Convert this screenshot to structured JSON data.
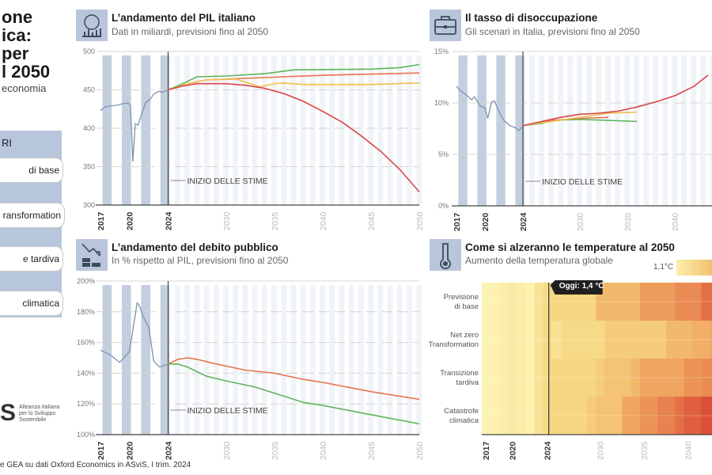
{
  "left_panel": {
    "title_lines": [
      "one",
      "ica:",
      "per",
      "l 2050"
    ],
    "subtitle": "economia",
    "legend_header": "RI",
    "legend_items": [
      "di base",
      "ransformation",
      "e tardiva",
      "climatica"
    ],
    "logo_text": [
      "Alleanza Italiana",
      "per lo Sviluppo",
      "Sostenibile"
    ],
    "source": "e GEA su dati Oxford Economics in ASviS, I trim. 2024"
  },
  "annotation": "INIZIO DELLE STIME",
  "chart_data": [
    {
      "id": "pil",
      "type": "line",
      "title": "L’andamento del PIL italiano",
      "subtitle": "Dati in miliardi, previsioni fino al 2050",
      "icon": "globe-chart-icon",
      "ylim": [
        300,
        500
      ],
      "yticks": [
        "300",
        "350",
        "400",
        "450",
        "500"
      ],
      "ytick_values": [
        300,
        350,
        400,
        450,
        500
      ],
      "xlim": [
        2017,
        2050
      ],
      "xticks": [
        "2017",
        "2020",
        "2024",
        "2030",
        "2035",
        "2040",
        "2045",
        "2050"
      ],
      "forecast_start": 2024,
      "grid": true,
      "series": [
        {
          "color": "#7b93b0",
          "points": [
            [
              2017,
              423
            ],
            [
              2017.5,
              428
            ],
            [
              2018,
              429
            ],
            [
              2018.7,
              430
            ],
            [
              2019.3,
              432
            ],
            [
              2019.8,
              433
            ],
            [
              2020.1,
              430
            ],
            [
              2020.35,
              357
            ],
            [
              2020.6,
              406
            ],
            [
              2020.9,
              404
            ],
            [
              2021.3,
              420
            ],
            [
              2021.7,
              434
            ],
            [
              2022.1,
              437
            ],
            [
              2022.5,
              444
            ],
            [
              2023,
              448
            ],
            [
              2023.4,
              447
            ],
            [
              2024,
              450
            ]
          ]
        },
        {
          "color": "#5fb35a",
          "points": [
            [
              2024,
              450
            ],
            [
              2025.5,
              458
            ],
            [
              2027,
              467
            ],
            [
              2030,
              468
            ],
            [
              2034,
              471
            ],
            [
              2037,
              476
            ],
            [
              2045,
              477
            ],
            [
              2048,
              479
            ],
            [
              2050,
              483
            ]
          ]
        },
        {
          "color": "#e8744c",
          "points": [
            [
              2024,
              450
            ],
            [
              2026,
              458
            ],
            [
              2028,
              463
            ],
            [
              2032,
              465
            ],
            [
              2036,
              467
            ],
            [
              2040,
              469
            ],
            [
              2050,
              472
            ]
          ]
        },
        {
          "color": "#eec050",
          "points": [
            [
              2024,
              450
            ],
            [
              2026,
              458
            ],
            [
              2028,
              463
            ],
            [
              2031,
              464
            ],
            [
              2032.5,
              458
            ],
            [
              2033.5,
              454
            ],
            [
              2035,
              458
            ],
            [
              2036,
              459
            ],
            [
              2038,
              457
            ],
            [
              2045,
              457
            ],
            [
              2050,
              459
            ]
          ]
        },
        {
          "color": "#d9464a",
          "points": [
            [
              2024,
              450
            ],
            [
              2025.5,
              455
            ],
            [
              2027,
              458
            ],
            [
              2030,
              458
            ],
            [
              2032,
              456
            ],
            [
              2034,
              452
            ],
            [
              2036,
              445
            ],
            [
              2038,
              435
            ],
            [
              2040,
              422
            ],
            [
              2042,
              408
            ],
            [
              2044,
              390
            ],
            [
              2046,
              370
            ],
            [
              2048,
              346
            ],
            [
              2050,
              317
            ]
          ]
        }
      ]
    },
    {
      "id": "disoccupazione",
      "type": "line",
      "title": "Il tasso di disoccupazione",
      "subtitle": "Gli scenari in Italia, previsioni fino al 2050",
      "icon": "briefcase-icon",
      "ylim": [
        0,
        15
      ],
      "yticks": [
        "0%",
        "5%",
        "10%",
        "15%"
      ],
      "ytick_values": [
        0,
        5,
        10,
        15
      ],
      "xlim": [
        2017,
        2050
      ],
      "xticks": [
        "2017",
        "2020",
        "2024",
        "2030",
        "2035",
        "2040"
      ],
      "forecast_start": 2024,
      "grid": true,
      "series": [
        {
          "color": "#7b93b0",
          "points": [
            [
              2017,
              11.6
            ],
            [
              2017.4,
              11.2
            ],
            [
              2018,
              10.8
            ],
            [
              2018.6,
              10.3
            ],
            [
              2018.9,
              10.6
            ],
            [
              2019.5,
              9.7
            ],
            [
              2020,
              9.5
            ],
            [
              2020.3,
              8.5
            ],
            [
              2020.7,
              10.1
            ],
            [
              2021,
              10.2
            ],
            [
              2021.5,
              9.1
            ],
            [
              2022,
              8.3
            ],
            [
              2022.6,
              7.8
            ],
            [
              2023.2,
              7.6
            ],
            [
              2023.6,
              7.3
            ],
            [
              2024,
              7.8
            ]
          ]
        },
        {
          "color": "#5fb35a",
          "points": [
            [
              2024,
              7.8
            ],
            [
              2026,
              8
            ],
            [
              2027,
              8.3
            ],
            [
              2030,
              8.4
            ],
            [
              2033,
              8.3
            ],
            [
              2036,
              8.2
            ],
            [
              2050,
              8.2
            ]
          ]
        },
        {
          "color": "#e8744c",
          "points": [
            [
              2024,
              7.8
            ],
            [
              2027,
              8.3
            ],
            [
              2030,
              8.5
            ],
            [
              2033,
              8.6
            ],
            [
              2050,
              8.6
            ]
          ]
        },
        {
          "color": "#eec050",
          "points": [
            [
              2024,
              7.8
            ],
            [
              2027,
              8.2
            ],
            [
              2030,
              8.6
            ],
            [
              2033,
              9
            ],
            [
              2036,
              9.1
            ],
            [
              2050,
              9.1
            ]
          ]
        },
        {
          "color": "#d9464a",
          "points": [
            [
              2024,
              7.8
            ],
            [
              2026,
              8.2
            ],
            [
              2028,
              8.6
            ],
            [
              2030,
              8.9
            ],
            [
              2032,
              9
            ],
            [
              2034,
              9.2
            ],
            [
              2036,
              9.6
            ],
            [
              2038,
              10.1
            ],
            [
              2040,
              10.7
            ],
            [
              2042,
              11.6
            ],
            [
              2043.5,
              12.7
            ]
          ]
        }
      ]
    },
    {
      "id": "debito",
      "type": "line",
      "title": "L’andamento del debito pubblico",
      "subtitle": "In % rispetto al PIL, previsioni fino al 2050",
      "icon": "coins-down-icon",
      "ylim": [
        100,
        200
      ],
      "yticks": [
        "100%",
        "120%",
        "140%",
        "160%",
        "180%",
        "200%"
      ],
      "ytick_values": [
        100,
        120,
        140,
        160,
        180,
        200
      ],
      "xlim": [
        2017,
        2050
      ],
      "xticks": [
        "2017",
        "2020",
        "2024",
        "2030",
        "2035",
        "2040",
        "2045",
        "2050"
      ],
      "forecast_start": 2024,
      "grid": true,
      "series": [
        {
          "color": "#7b93b0",
          "points": [
            [
              2017,
              155
            ],
            [
              2018,
              152
            ],
            [
              2019,
              147
            ],
            [
              2020,
              154
            ],
            [
              2020.4,
              170
            ],
            [
              2020.8,
              186
            ],
            [
              2021.1,
              183
            ],
            [
              2021.4,
              177
            ],
            [
              2022,
              170
            ],
            [
              2022.5,
              148
            ],
            [
              2023.1,
              144
            ],
            [
              2023.6,
              145
            ],
            [
              2024,
              146
            ]
          ]
        },
        {
          "color": "#e8744c",
          "points": [
            [
              2024,
              146
            ],
            [
              2025,
              149
            ],
            [
              2026,
              150
            ],
            [
              2027,
              149
            ],
            [
              2029,
              146
            ],
            [
              2032,
              142
            ],
            [
              2035,
              140
            ],
            [
              2038,
              136
            ],
            [
              2040,
              134
            ],
            [
              2045,
              128
            ],
            [
              2050,
              123
            ]
          ]
        },
        {
          "color": "#5fb35a",
          "points": [
            [
              2024,
              146
            ],
            [
              2025,
              146
            ],
            [
              2026,
              144
            ],
            [
              2027,
              141
            ],
            [
              2028,
              138
            ],
            [
              2030,
              135
            ],
            [
              2033,
              131
            ],
            [
              2035,
              127
            ],
            [
              2038,
              121
            ],
            [
              2040,
              119
            ],
            [
              2045,
              113
            ],
            [
              2050,
              107
            ]
          ]
        }
      ]
    },
    {
      "id": "temperature",
      "type": "heatmap",
      "title": "Come si alzeranno le temperature al 2050",
      "subtitle": "Aumento della temperatura globale",
      "icon": "thermometer-icon",
      "legend_min_label": "1,1°C",
      "today_label": "Oggi: 1,4 °C",
      "xlim": [
        2017,
        2050
      ],
      "xticks": [
        "2017",
        "2020",
        "2024",
        "2030",
        "2035",
        "2040"
      ],
      "rows": [
        "Previsione di base",
        "Net zero Transformation",
        "Transizione tardiva",
        "Catastrofe climatica"
      ],
      "row_labels": [
        [
          "Previsione",
          "di base"
        ],
        [
          "Net zero",
          "Transformation"
        ],
        [
          "Transizione",
          "tardiva"
        ],
        [
          "Catastrofe",
          "climatica"
        ]
      ],
      "years": [
        2017,
        2018,
        2019,
        2020,
        2021,
        2022,
        2023,
        2024,
        2025,
        2026,
        2027,
        2028,
        2029,
        2030,
        2031,
        2032,
        2033,
        2034,
        2035,
        2036,
        2037,
        2038,
        2039,
        2040,
        2041,
        2042,
        2043,
        2044
      ],
      "values": [
        [
          1.1,
          1.1,
          1.15,
          1.2,
          1.15,
          1.1,
          1.3,
          1.4,
          1.45,
          1.45,
          1.45,
          1.45,
          1.45,
          1.6,
          1.6,
          1.6,
          1.6,
          1.6,
          1.75,
          1.75,
          1.75,
          1.75,
          1.85,
          1.85,
          1.85,
          2.0,
          2.0,
          2.0
        ],
        [
          1.1,
          1.1,
          1.15,
          1.2,
          1.15,
          1.1,
          1.3,
          1.4,
          1.3,
          1.4,
          1.4,
          1.4,
          1.4,
          1.4,
          1.5,
          1.5,
          1.5,
          1.5,
          1.5,
          1.5,
          1.5,
          1.6,
          1.6,
          1.6,
          1.65,
          1.65,
          1.7,
          1.7
        ],
        [
          1.1,
          1.1,
          1.15,
          1.2,
          1.15,
          1.1,
          1.3,
          1.4,
          1.45,
          1.45,
          1.45,
          1.45,
          1.45,
          1.5,
          1.55,
          1.55,
          1.55,
          1.6,
          1.7,
          1.7,
          1.7,
          1.7,
          1.7,
          1.8,
          1.8,
          1.85,
          1.85,
          1.9
        ],
        [
          1.1,
          1.1,
          1.15,
          1.2,
          1.15,
          1.1,
          1.3,
          1.4,
          1.45,
          1.45,
          1.45,
          1.45,
          1.5,
          1.55,
          1.55,
          1.55,
          1.7,
          1.7,
          1.8,
          1.8,
          1.9,
          1.9,
          2.0,
          2.1,
          2.1,
          2.2,
          2.2,
          2.3
        ]
      ]
    }
  ]
}
